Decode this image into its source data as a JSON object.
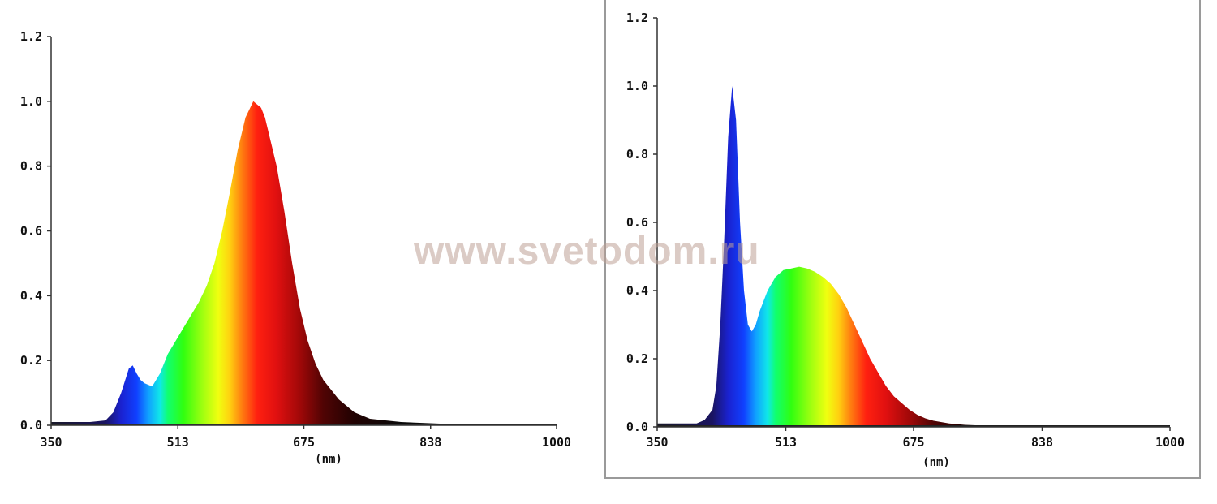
{
  "watermark": "www.svetodom.ru",
  "chart_data": [
    {
      "type": "area",
      "title": "",
      "xlabel": "(nm)",
      "ylabel": "",
      "xlim": [
        350,
        1000
      ],
      "ylim": [
        0,
        1.2
      ],
      "x_ticks": [
        "350",
        "513",
        "675",
        "838",
        "1000"
      ],
      "y_ticks": [
        "0.0",
        "0.2",
        "0.4",
        "0.6",
        "0.8",
        "1.0",
        "1.2"
      ],
      "fill": "visible-spectrum gradient",
      "grid": false,
      "series": [
        {
          "x": [
            350,
            400,
            420,
            430,
            440,
            450,
            455,
            460,
            465,
            470,
            480,
            490,
            500,
            510,
            520,
            530,
            540,
            550,
            560,
            570,
            580,
            590,
            600,
            610,
            620,
            625,
            630,
            640,
            650,
            660,
            670,
            680,
            690,
            700,
            720,
            740,
            760,
            800,
            850,
            1000
          ],
          "y": [
            0.01,
            0.01,
            0.015,
            0.04,
            0.1,
            0.175,
            0.185,
            0.16,
            0.14,
            0.13,
            0.12,
            0.16,
            0.22,
            0.26,
            0.3,
            0.34,
            0.38,
            0.43,
            0.5,
            0.6,
            0.72,
            0.85,
            0.95,
            1.0,
            0.98,
            0.95,
            0.9,
            0.8,
            0.66,
            0.5,
            0.36,
            0.26,
            0.19,
            0.14,
            0.08,
            0.04,
            0.02,
            0.01,
            0.005,
            0
          ]
        }
      ]
    },
    {
      "type": "area",
      "title": "",
      "xlabel": "(nm)",
      "ylabel": "",
      "xlim": [
        350,
        1000
      ],
      "ylim": [
        0,
        1.2
      ],
      "x_ticks": [
        "350",
        "513",
        "675",
        "838",
        "1000"
      ],
      "y_ticks": [
        "0.0",
        "0.2",
        "0.4",
        "0.6",
        "0.8",
        "1.0",
        "1.2"
      ],
      "fill": "visible-spectrum gradient",
      "grid": false,
      "series": [
        {
          "x": [
            350,
            400,
            410,
            420,
            425,
            430,
            435,
            440,
            445,
            450,
            455,
            460,
            465,
            470,
            475,
            480,
            490,
            500,
            510,
            520,
            530,
            540,
            550,
            560,
            570,
            580,
            590,
            600,
            610,
            620,
            630,
            640,
            650,
            660,
            670,
            680,
            690,
            700,
            720,
            740,
            760,
            800,
            850,
            1000
          ],
          "y": [
            0.01,
            0.01,
            0.02,
            0.05,
            0.12,
            0.3,
            0.55,
            0.85,
            1.0,
            0.9,
            0.6,
            0.4,
            0.3,
            0.28,
            0.3,
            0.34,
            0.4,
            0.44,
            0.46,
            0.465,
            0.47,
            0.465,
            0.455,
            0.44,
            0.42,
            0.39,
            0.35,
            0.3,
            0.25,
            0.2,
            0.16,
            0.12,
            0.09,
            0.07,
            0.05,
            0.035,
            0.025,
            0.018,
            0.01,
            0.006,
            0.004,
            0.002,
            0.001,
            0
          ]
        }
      ]
    }
  ]
}
